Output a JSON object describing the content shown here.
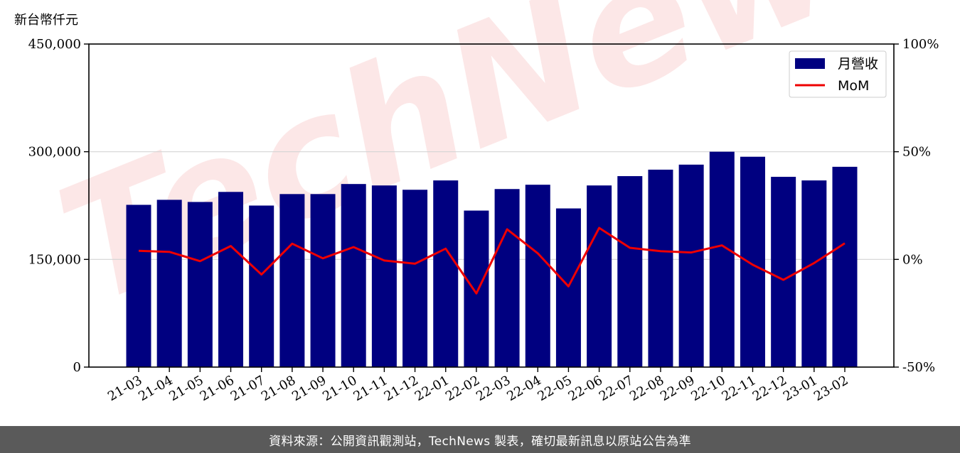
{
  "chart_data": {
    "type": "bar",
    "y_unit": "新台幣仟元",
    "categories": [
      "21-03",
      "21-04",
      "21-05",
      "21-06",
      "21-07",
      "21-08",
      "21-09",
      "21-10",
      "21-11",
      "21-12",
      "22-01",
      "22-02",
      "22-03",
      "22-04",
      "22-05",
      "22-06",
      "22-07",
      "22-08",
      "22-09",
      "22-10",
      "22-11",
      "22-12",
      "23-01",
      "23-02"
    ],
    "series": [
      {
        "name": "月營收",
        "type": "bar",
        "axis": "left",
        "color": "#000080",
        "values": [
          226000,
          233000,
          230000,
          244000,
          225000,
          241000,
          241000,
          255000,
          253000,
          247000,
          260000,
          218000,
          248000,
          254000,
          221000,
          253000,
          266000,
          275000,
          282000,
          300000,
          293000,
          265000,
          260000,
          279000
        ]
      },
      {
        "name": "MoM",
        "type": "line",
        "axis": "right",
        "color": "#ee0000",
        "values": [
          4.0,
          3.5,
          -0.8,
          6.2,
          -7.0,
          7.3,
          0.5,
          5.7,
          -0.5,
          -2.0,
          5.0,
          -15.8,
          14.0,
          2.8,
          -12.5,
          14.6,
          5.4,
          3.8,
          3.2,
          6.5,
          -2.5,
          -9.5,
          -1.7,
          7.5
        ]
      }
    ],
    "left_axis": {
      "ylim": [
        0,
        450000
      ],
      "ticks": [
        0,
        150000,
        300000,
        450000
      ],
      "tick_labels": [
        "0",
        "150,000",
        "300,000",
        "450,000"
      ]
    },
    "right_axis": {
      "ylim": [
        -50,
        100
      ],
      "ticks": [
        -50,
        0,
        50,
        100
      ],
      "tick_labels": [
        "-50%",
        "0%",
        "50%",
        "100%"
      ]
    },
    "grid": "horizontal",
    "legend": "top-right",
    "watermark": "TechNews"
  },
  "footer": {
    "source_text": "資料來源：公開資訊觀測站，TechNews 製表，確切最新訊息以原站公告為準"
  }
}
